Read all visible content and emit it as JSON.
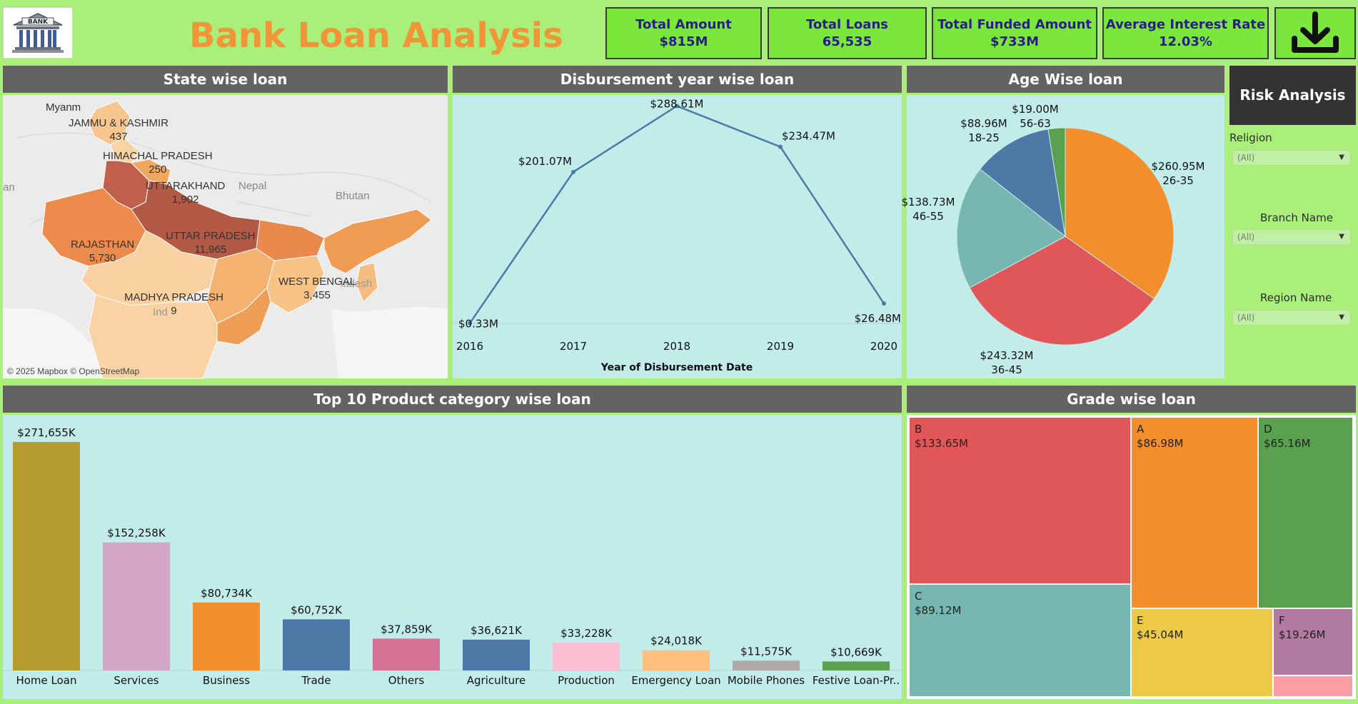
{
  "header": {
    "logo_text": "BANK",
    "title": "Bank Loan Analysis",
    "download_icon": "download-icon"
  },
  "kpis": [
    {
      "label": "Total Amount",
      "value": "$815M"
    },
    {
      "label": "Total Loans",
      "value": "65,535"
    },
    {
      "label": "Total Funded Amount",
      "value": "$733M"
    },
    {
      "label": "Average Interest Rate",
      "value": "12.03%"
    }
  ],
  "state_map": {
    "title": "State wise loan",
    "credit": "© 2025 Mapbox © OpenStreetMap",
    "background_labels": [
      "Nepal",
      "Bhutan",
      "an",
      "ladesh",
      "Ind",
      "Myanm"
    ],
    "states": [
      {
        "name": "JAMMU & KASHMIR",
        "value": "437"
      },
      {
        "name": "HIMACHAL PRADESH",
        "value": "250"
      },
      {
        "name": "UTTARAKHAND",
        "value": "1,902"
      },
      {
        "name": "RAJASTHAN",
        "value": "5,730"
      },
      {
        "name": "UTTAR PRADESH",
        "value": "11,965"
      },
      {
        "name": "WEST BENGAL",
        "value": "3,455"
      },
      {
        "name": "MADHYA PRADESH",
        "value": "9"
      }
    ]
  },
  "risk": {
    "button": "Risk Analysis",
    "filters": [
      {
        "label": "Religion",
        "value": "(All)"
      },
      {
        "label": "Branch Name",
        "value": "(All)"
      },
      {
        "label": "Region Name",
        "value": "(All)"
      }
    ]
  },
  "chart_data": [
    {
      "type": "line",
      "title": "Disbursement year wise loan",
      "xlabel": "Year of Disbursement Date",
      "x": [
        "2016",
        "2017",
        "2018",
        "2019",
        "2020"
      ],
      "values": [
        0.33,
        201.07,
        288.61,
        234.47,
        26.48
      ],
      "data_labels": [
        "$0.33M",
        "$201.07M",
        "$288.61M",
        "$234.47M",
        "$26.48M"
      ],
      "ylim": [
        0,
        290
      ],
      "color": "#4e79a7"
    },
    {
      "type": "pie",
      "title": "Age Wise loan",
      "slices": [
        {
          "label": "26-35",
          "value": 260.95,
          "text": "$260.95M",
          "color": "#f28e2b"
        },
        {
          "label": "36-45",
          "value": 243.32,
          "text": "$243.32M",
          "color": "#e15759"
        },
        {
          "label": "46-55",
          "value": 138.73,
          "text": "$138.73M",
          "color": "#76b7b2"
        },
        {
          "label": "18-25",
          "value": 88.96,
          "text": "$88.96M",
          "color": "#4e79a7"
        },
        {
          "label": "56-63",
          "value": 19.0,
          "text": "$19.00M",
          "color": "#59a14f"
        }
      ]
    },
    {
      "type": "bar",
      "title": "Top 10 Product category wise loan",
      "categories": [
        "Home Loan",
        "Services",
        "Business",
        "Trade",
        "Others",
        "Agriculture",
        "Production",
        "Emergency Loan",
        "Mobile Phones",
        "Festive Loan-Pr.."
      ],
      "values": [
        271655,
        152258,
        80734,
        60752,
        37859,
        36621,
        33228,
        24018,
        11575,
        10669
      ],
      "data_labels": [
        "$271,655K",
        "$152,258K",
        "$80,734K",
        "$60,752K",
        "$37,859K",
        "$36,621K",
        "$33,228K",
        "$24,018K",
        "$11,575K",
        "$10,669K"
      ],
      "colors": [
        "#b59a2d",
        "#d4a6c8",
        "#f28e2b",
        "#4e79a7",
        "#d37295",
        "#4e79a7",
        "#fabfd2",
        "#ffbe7d",
        "#b0aaa6",
        "#59a14f"
      ]
    },
    {
      "type": "treemap",
      "title": "Grade wise loan",
      "items": [
        {
          "label": "B",
          "value": 133.65,
          "text": "$133.65M",
          "color": "#e15759"
        },
        {
          "label": "A",
          "value": 86.98,
          "text": "$86.98M",
          "color": "#f28e2b"
        },
        {
          "label": "D",
          "value": 65.16,
          "text": "$65.16M",
          "color": "#59a14f"
        },
        {
          "label": "C",
          "value": 89.12,
          "text": "$89.12M",
          "color": "#76b7b2"
        },
        {
          "label": "E",
          "value": 45.04,
          "text": "$45.04M",
          "color": "#edc948"
        },
        {
          "label": "F",
          "value": 19.26,
          "text": "$19.26M",
          "color": "#b07aa1"
        },
        {
          "label": "",
          "value": 8,
          "text": "",
          "color": "#ff9da7"
        }
      ]
    }
  ]
}
